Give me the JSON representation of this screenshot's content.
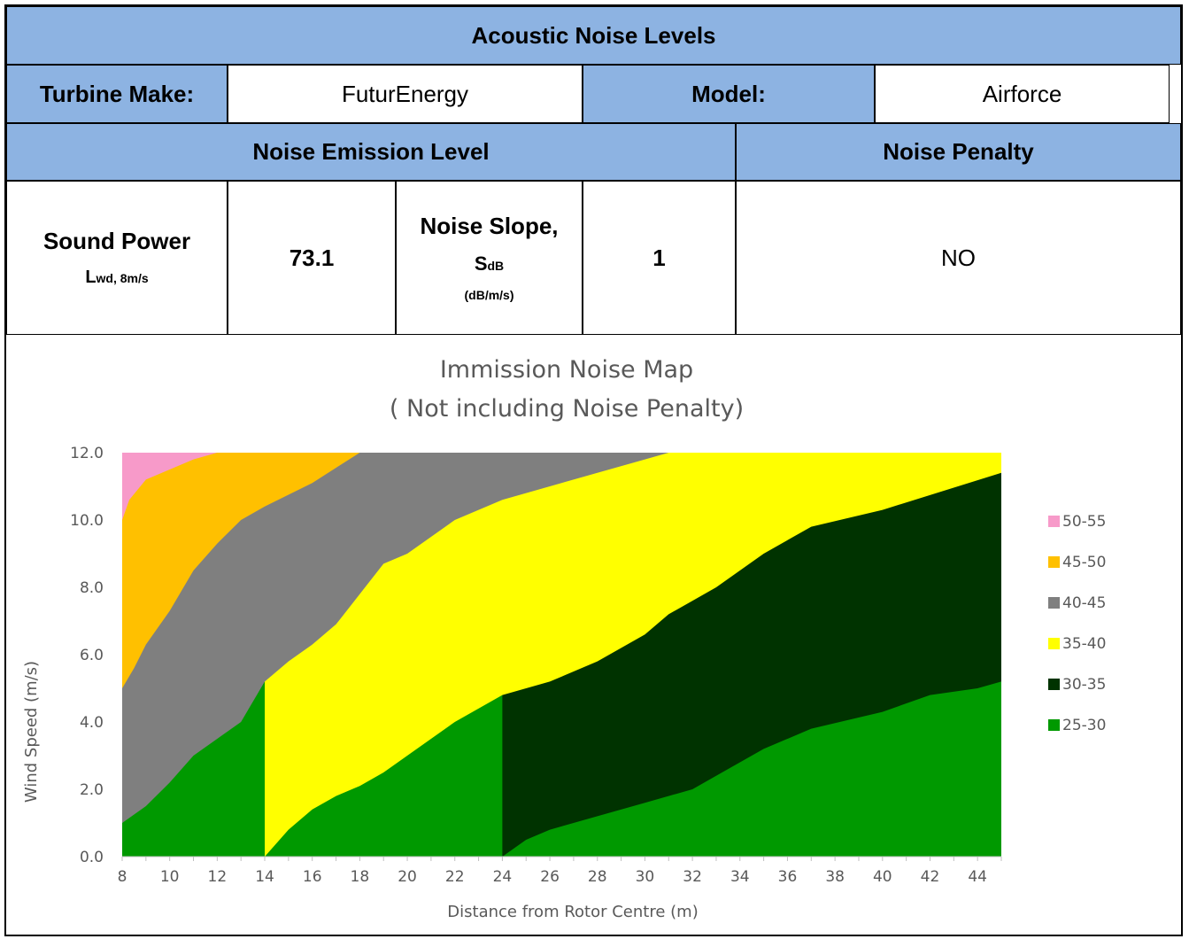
{
  "header": {
    "title": "Acoustic Noise Levels"
  },
  "turbine": {
    "make_label": "Turbine Make:",
    "make_value": "FuturEnergy",
    "model_label": "Model:",
    "model_value": "Airforce"
  },
  "sections": {
    "emission_label": "Noise Emission Level",
    "penalty_label": "Noise Penalty"
  },
  "emission": {
    "sound_power_label": "Sound Power",
    "lwd_main": "L",
    "lwd_sub": "wd, 8m/s",
    "sound_power_value": "73.1",
    "slope_label": "Noise Slope,",
    "slope_symbol_main": "S",
    "slope_symbol_sub": "dB",
    "slope_unit": "(dB/m/s)",
    "slope_value": "1",
    "penalty_value": "NO"
  },
  "colors": {
    "header_blue": "#8db3e2",
    "band_50_55": "#f79ac9",
    "band_45_50": "#ffc000",
    "band_40_45": "#7f7f7f",
    "band_35_40": "#ffff00",
    "band_30_35": "#003300",
    "band_25_30": "#009900"
  },
  "chart_data": {
    "type": "area",
    "title_line1": "Immission Noise Map",
    "title_line2": "( Not including Noise Penalty)",
    "xlabel": "Distance from  Rotor Centre (m)",
    "ylabel": "Wind Speed (m/s)",
    "xlim": [
      8,
      45
    ],
    "ylim": [
      0,
      12
    ],
    "x_ticks": [
      "8",
      "10",
      "12",
      "14",
      "16",
      "18",
      "20",
      "22",
      "24",
      "26",
      "28",
      "30",
      "32",
      "34",
      "36",
      "38",
      "40",
      "42",
      "44"
    ],
    "y_ticks": [
      "0.0",
      "2.0",
      "4.0",
      "6.0",
      "8.0",
      "10.0",
      "12.0"
    ],
    "grid": false,
    "legend_position": "right",
    "legend": [
      "50-55",
      "45-50",
      "40-45",
      "35-40",
      "30-35",
      "25-30"
    ],
    "series": [
      {
        "name": "50-55",
        "color": "#f79ac9",
        "boundary": [
          [
            8,
            10
          ],
          [
            8.3,
            10.6
          ],
          [
            9,
            11.2
          ],
          [
            10,
            11.5
          ],
          [
            11,
            11.8
          ],
          [
            12,
            12
          ]
        ]
      },
      {
        "name": "45-50",
        "color": "#ffc000",
        "boundary": [
          [
            8,
            5
          ],
          [
            8.5,
            5.6
          ],
          [
            9,
            6.3
          ],
          [
            10,
            7.3
          ],
          [
            11,
            8.5
          ],
          [
            12,
            9.3
          ],
          [
            13,
            10
          ],
          [
            14,
            10.4
          ],
          [
            16,
            11.1
          ],
          [
            18,
            12
          ]
        ]
      },
      {
        "name": "40-45",
        "color": "#7f7f7f",
        "boundary": [
          [
            8,
            1
          ],
          [
            9,
            1.5
          ],
          [
            10,
            2.2
          ],
          [
            11,
            3
          ],
          [
            12,
            3.5
          ],
          [
            13,
            4
          ],
          [
            14,
            5.2
          ],
          [
            15,
            5.8
          ],
          [
            16,
            6.3
          ],
          [
            17,
            6.9
          ],
          [
            18,
            7.8
          ],
          [
            19,
            8.7
          ],
          [
            20,
            9
          ],
          [
            22,
            10
          ],
          [
            24,
            10.6
          ],
          [
            26,
            11
          ],
          [
            28,
            11.4
          ],
          [
            30,
            11.8
          ],
          [
            31,
            12
          ]
        ]
      },
      {
        "name": "35-40",
        "color": "#ffff00",
        "boundary": [
          [
            14,
            0
          ],
          [
            15,
            0.8
          ],
          [
            16,
            1.4
          ],
          [
            17,
            1.8
          ],
          [
            18,
            2.1
          ],
          [
            19,
            2.5
          ],
          [
            20,
            3
          ],
          [
            22,
            4
          ],
          [
            24,
            4.8
          ],
          [
            26,
            5.2
          ],
          [
            28,
            5.8
          ],
          [
            30,
            6.6
          ],
          [
            31,
            7.2
          ],
          [
            32,
            7.6
          ],
          [
            33,
            8
          ],
          [
            35,
            9
          ],
          [
            37,
            9.8
          ],
          [
            40,
            10.3
          ],
          [
            45,
            11.4
          ]
        ]
      },
      {
        "name": "30-35",
        "color": "#003300",
        "boundary": [
          [
            24,
            0
          ],
          [
            25,
            0.5
          ],
          [
            26,
            0.8
          ],
          [
            28,
            1.2
          ],
          [
            30,
            1.6
          ],
          [
            32,
            2
          ],
          [
            33,
            2.4
          ],
          [
            35,
            3.2
          ],
          [
            37,
            3.8
          ],
          [
            40,
            4.3
          ],
          [
            42,
            4.8
          ],
          [
            44,
            5
          ],
          [
            45,
            5.2
          ]
        ]
      },
      {
        "name": "25-30",
        "color": "#009900",
        "boundary": []
      }
    ]
  }
}
